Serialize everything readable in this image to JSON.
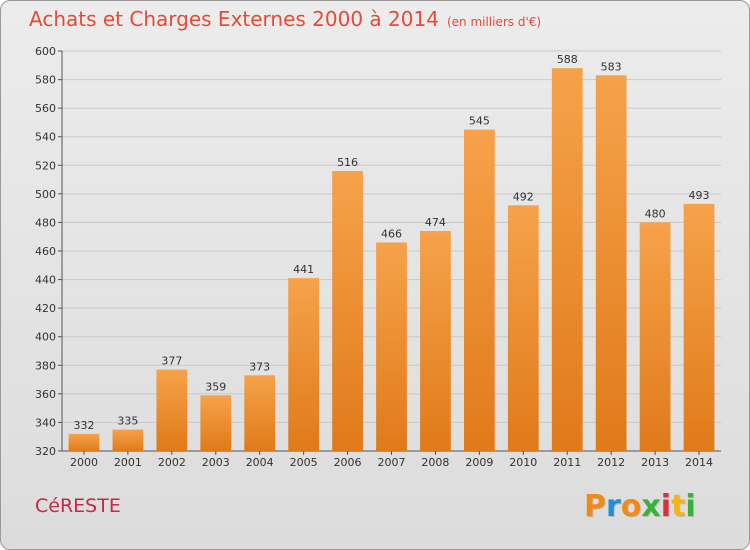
{
  "header": {
    "title": "Achats et Charges Externes 2000 à 2014",
    "unit": "(en milliers d'€)"
  },
  "footer": {
    "city": "CéRESTE",
    "logo_letters": [
      "P",
      "r",
      "o",
      "x",
      "i",
      "t",
      "i"
    ],
    "logo_colors": [
      "#f28a18",
      "#1f8fd6",
      "#f28a18",
      "#3caf3c",
      "#d8323c",
      "#f2b418",
      "#3caf3c"
    ]
  },
  "colors": {
    "bar_top": "#f6a24a",
    "bar_bottom": "#e07a1a",
    "title": "#e64b35",
    "grid": "#c9c9c9"
  },
  "chart_data": {
    "type": "bar",
    "categories": [
      "2000",
      "2001",
      "2002",
      "2003",
      "2004",
      "2005",
      "2006",
      "2007",
      "2008",
      "2009",
      "2010",
      "2011",
      "2012",
      "2013",
      "2014"
    ],
    "values": [
      332,
      335,
      377,
      359,
      373,
      441,
      516,
      466,
      474,
      545,
      492,
      588,
      583,
      480,
      493
    ],
    "title": "Achats et Charges Externes 2000 à 2014",
    "ylim": [
      320,
      600
    ],
    "yticks": [
      320,
      340,
      360,
      380,
      400,
      420,
      440,
      460,
      480,
      500,
      520,
      540,
      560,
      580,
      600
    ],
    "grid": true,
    "data_labels": true
  }
}
